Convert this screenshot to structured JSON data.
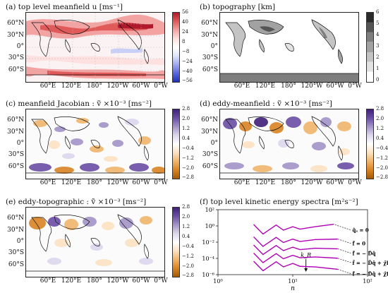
{
  "panels": {
    "a": {
      "title": "(a) top level meanfield u [ms⁻¹]",
      "colorbar": [
        "56",
        "40",
        "24",
        "8",
        "−8",
        "−24",
        "−40",
        "−56"
      ]
    },
    "b": {
      "title": "(b) topography [km]",
      "colorbar": [
        "6",
        "5",
        "4",
        "3",
        "2",
        "1",
        "0"
      ]
    },
    "c": {
      "title": "(c) meanfield Jacobian : ṽ ×10⁻³ [ms⁻²]",
      "colorbar": [
        "2.8",
        "2.0",
        "1.2",
        "0.4",
        "−0.4",
        "−1.2",
        "−2.0",
        "−2.8"
      ]
    },
    "d": {
      "title": "(d) eddy-meanfield : ṽ ×10⁻³ [ms⁻²]",
      "colorbar": [
        "2.8",
        "2.0",
        "1.2",
        "0.4",
        "−0.4",
        "−1.2",
        "−2.0",
        "−2.8"
      ]
    },
    "e": {
      "title": "(e) eddy-topographic : ṽ ×10⁻³ [ms⁻²]",
      "colorbar": [
        "2.8",
        "2.0",
        "1.2",
        "0.4",
        "−0.4",
        "−1.2",
        "−2.0",
        "−2.8"
      ]
    },
    "f": {
      "title": "(f) top level kinetic energy spectra [m²s⁻²]"
    }
  },
  "map_axes": {
    "lat_labels": [
      "60°N",
      "30°N",
      "0°",
      "30°S",
      "60°S"
    ],
    "lon_labels": [
      "60°E",
      "120°E",
      "180°",
      "120°W",
      "60°W",
      "0°W"
    ]
  },
  "colors": {
    "diverging_red_blue": [
      "#b2182b",
      "#e05a5a",
      "#f4a3a3",
      "#fde0e0",
      "#e0e4fb",
      "#9fa9f0",
      "#5a67e0",
      "#2130b8"
    ],
    "diverging_purple_orange": [
      "#3f1f7a",
      "#6a4ea5",
      "#a395c9",
      "#ddd7ec",
      "#fbe2c2",
      "#f1b56b",
      "#d98423",
      "#a55a06"
    ],
    "greys": [
      "#ffffff",
      "#e2e2e2",
      "#c4c4c4",
      "#a2a2a2",
      "#7e7e7e",
      "#555555",
      "#2a2a2a"
    ],
    "spectra_line": "#b000b5",
    "spectra_dash": "#222222"
  },
  "chart_data": {
    "type": "line",
    "xlabel": "n",
    "xscale": "log",
    "yscale": "log",
    "xlim": [
      1,
      100
    ],
    "ylim": [
      1e-06,
      100
    ],
    "xticks": [
      "10⁰",
      "10¹",
      "10²"
    ],
    "yticks": [
      "10²",
      "10⁰",
      "10⁻²",
      "10⁻⁴",
      "10⁻⁶"
    ],
    "annotation_kR": "k_R",
    "kR_x": 15,
    "series": [
      {
        "name": "q̂ₛ = 0",
        "scale": 1,
        "values": [
          [
            3,
            1.5
          ],
          [
            4,
            0.1
          ],
          [
            6,
            1.3
          ],
          [
            7.5,
            0.3
          ],
          [
            10,
            0.8
          ],
          [
            12.5,
            0.4
          ],
          [
            20,
            0.8
          ],
          [
            35,
            1.6
          ]
        ]
      },
      {
        "name": "f̂ = 0",
        "scale": 0.03,
        "values": [
          [
            3,
            1.5
          ],
          [
            4,
            0.1
          ],
          [
            6,
            1.3
          ],
          [
            7.5,
            0.3
          ],
          [
            10,
            0.8
          ],
          [
            12.5,
            0.4
          ],
          [
            20,
            0.7
          ],
          [
            40,
            0.8
          ]
        ]
      },
      {
        "name": "f̂ = − D̂q̂",
        "scale": 0.003,
        "values": [
          [
            3,
            1.5
          ],
          [
            4,
            0.1
          ],
          [
            6,
            1.3
          ],
          [
            7.5,
            0.3
          ],
          [
            10,
            0.8
          ],
          [
            12.5,
            0.4
          ],
          [
            20,
            0.6
          ],
          [
            40,
            0.5
          ]
        ]
      },
      {
        "name": "f̂ = − D̂q̂ + χ̂h",
        "scale": 0.0003,
        "values": [
          [
            3,
            1.5
          ],
          [
            4,
            0.1
          ],
          [
            6,
            1.3
          ],
          [
            7.5,
            0.3
          ],
          [
            10,
            0.8
          ],
          [
            12.5,
            0.4
          ],
          [
            20,
            0.5
          ],
          [
            40,
            0.35
          ]
        ]
      },
      {
        "name": "f̂ = − D̂q̂ + χ̂h + ĵ",
        "scale": 3e-05,
        "values": [
          [
            3,
            1.5
          ],
          [
            4,
            0.1
          ],
          [
            6,
            1.3
          ],
          [
            7.5,
            0.3
          ],
          [
            10,
            0.8
          ],
          [
            12.5,
            0.35
          ],
          [
            20,
            0.3
          ],
          [
            40,
            0.15
          ]
        ]
      }
    ]
  }
}
